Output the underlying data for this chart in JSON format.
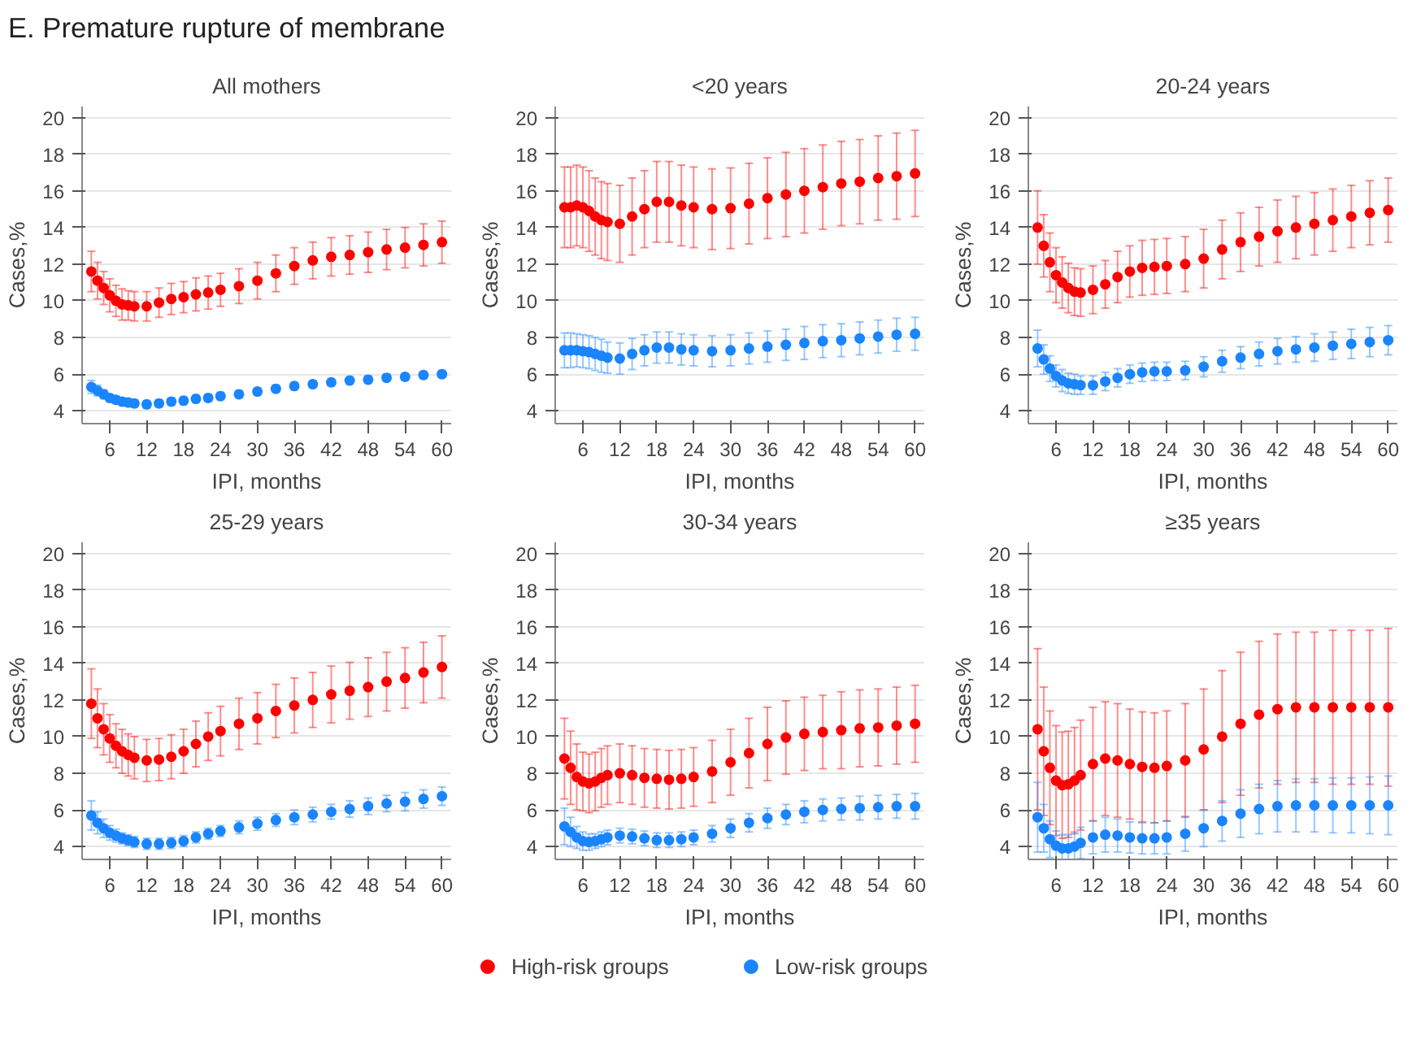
{
  "chart_data": [
    {
      "type": "scatter",
      "title": "All mothers",
      "xlabel": "IPI, months",
      "ylabel": "Cases,%",
      "annotations": [
        "E. Premature rupture of membrane"
      ],
      "legend": "bottom",
      "marker": "circle",
      "grid": "y",
      "xlim": [
        1.5,
        61.5
      ],
      "xticks": [
        6,
        12,
        18,
        24,
        30,
        36,
        42,
        48,
        54,
        60
      ],
      "ylim": [
        3.3,
        20.6
      ],
      "yticks": [
        4,
        6,
        8,
        10,
        12,
        14,
        16,
        18,
        20
      ],
      "x": [
        3,
        4,
        5,
        6,
        7,
        8,
        9,
        10,
        12,
        14,
        16,
        18,
        20,
        22,
        24,
        27,
        30,
        33,
        36,
        39,
        42,
        45,
        48,
        51,
        54,
        57,
        60
      ],
      "series": [
        {
          "name": "High-risk groups",
          "color": "#ff0000",
          "values": [
            11.6,
            11.1,
            10.7,
            10.3,
            10.0,
            9.8,
            9.75,
            9.7,
            9.7,
            9.9,
            10.1,
            10.2,
            10.35,
            10.45,
            10.6,
            10.8,
            11.1,
            11.5,
            11.9,
            12.2,
            12.4,
            12.5,
            12.65,
            12.8,
            12.9,
            13.05,
            13.2
          ],
          "errors": [
            1.1,
            1.0,
            0.9,
            0.9,
            0.85,
            0.85,
            0.8,
            0.8,
            0.8,
            0.8,
            0.85,
            0.85,
            0.9,
            0.9,
            0.9,
            0.95,
            1.0,
            1.0,
            1.0,
            1.0,
            1.05,
            1.05,
            1.1,
            1.1,
            1.1,
            1.15,
            1.15
          ]
        },
        {
          "name": "Low-risk groups",
          "color": "#1a85ff",
          "values": [
            5.3,
            5.1,
            4.9,
            4.7,
            4.6,
            4.5,
            4.45,
            4.4,
            4.35,
            4.4,
            4.5,
            4.55,
            4.65,
            4.7,
            4.8,
            4.9,
            5.05,
            5.2,
            5.35,
            5.45,
            5.55,
            5.65,
            5.7,
            5.8,
            5.85,
            5.95,
            6.0
          ],
          "errors": [
            0.35,
            0.3,
            0.25,
            0.2,
            0.2,
            0.2,
            0.2,
            0.2,
            0.2,
            0.2,
            0.2,
            0.2,
            0.2,
            0.2,
            0.2,
            0.2,
            0.2,
            0.2,
            0.2,
            0.2,
            0.2,
            0.2,
            0.2,
            0.2,
            0.2,
            0.2,
            0.2
          ]
        }
      ]
    },
    {
      "type": "scatter",
      "title": "<20 years",
      "xlabel": "IPI, months",
      "ylabel": "Cases,%",
      "marker": "circle",
      "grid": "y",
      "xlim": [
        1.5,
        61.5
      ],
      "xticks": [
        6,
        12,
        18,
        24,
        30,
        36,
        42,
        48,
        54,
        60
      ],
      "ylim": [
        3.3,
        20.6
      ],
      "yticks": [
        4,
        6,
        8,
        10,
        12,
        14,
        16,
        18,
        20
      ],
      "x": [
        3,
        4,
        5,
        6,
        7,
        8,
        9,
        10,
        12,
        14,
        16,
        18,
        20,
        22,
        24,
        27,
        30,
        33,
        36,
        39,
        42,
        45,
        48,
        51,
        54,
        57,
        60
      ],
      "series": [
        {
          "color": "#ff0000",
          "values": [
            15.1,
            15.1,
            15.2,
            15.1,
            14.9,
            14.6,
            14.4,
            14.3,
            14.2,
            14.6,
            15.0,
            15.4,
            15.4,
            15.2,
            15.1,
            15.0,
            15.05,
            15.3,
            15.6,
            15.8,
            16.0,
            16.2,
            16.4,
            16.5,
            16.7,
            16.8,
            16.95
          ],
          "errors": [
            2.2,
            2.2,
            2.2,
            2.2,
            2.2,
            2.1,
            2.1,
            2.1,
            2.1,
            2.1,
            2.1,
            2.2,
            2.2,
            2.2,
            2.2,
            2.2,
            2.2,
            2.2,
            2.2,
            2.3,
            2.3,
            2.3,
            2.3,
            2.3,
            2.3,
            2.35,
            2.35
          ]
        },
        {
          "color": "#1a85ff",
          "values": [
            7.3,
            7.3,
            7.3,
            7.25,
            7.2,
            7.1,
            7.0,
            6.9,
            6.85,
            7.1,
            7.3,
            7.45,
            7.45,
            7.35,
            7.3,
            7.25,
            7.3,
            7.4,
            7.5,
            7.6,
            7.7,
            7.8,
            7.85,
            7.95,
            8.05,
            8.15,
            8.2
          ],
          "errors": [
            0.95,
            0.95,
            0.9,
            0.9,
            0.9,
            0.9,
            0.9,
            0.85,
            0.85,
            0.85,
            0.85,
            0.85,
            0.85,
            0.85,
            0.85,
            0.85,
            0.85,
            0.85,
            0.85,
            0.85,
            0.9,
            0.9,
            0.9,
            0.9,
            0.9,
            0.9,
            0.9
          ]
        }
      ]
    },
    {
      "type": "scatter",
      "title": "20-24 years",
      "xlabel": "IPI, months",
      "ylabel": "Cases,%",
      "marker": "circle",
      "grid": "y",
      "xlim": [
        1.5,
        61.5
      ],
      "xticks": [
        6,
        12,
        18,
        24,
        30,
        36,
        42,
        48,
        54,
        60
      ],
      "ylim": [
        3.3,
        20.6
      ],
      "yticks": [
        4,
        6,
        8,
        10,
        12,
        14,
        16,
        18,
        20
      ],
      "x": [
        3,
        4,
        5,
        6,
        7,
        8,
        9,
        10,
        12,
        14,
        16,
        18,
        20,
        22,
        24,
        27,
        30,
        33,
        36,
        39,
        42,
        45,
        48,
        51,
        54,
        57,
        60
      ],
      "series": [
        {
          "color": "#ff0000",
          "values": [
            14.0,
            13.0,
            12.1,
            11.4,
            11.0,
            10.7,
            10.5,
            10.45,
            10.6,
            10.9,
            11.3,
            11.6,
            11.8,
            11.85,
            11.9,
            12.0,
            12.3,
            12.8,
            13.2,
            13.5,
            13.8,
            14.0,
            14.2,
            14.4,
            14.6,
            14.8,
            14.95
          ],
          "errors": [
            2.0,
            1.7,
            1.6,
            1.5,
            1.4,
            1.35,
            1.3,
            1.3,
            1.3,
            1.3,
            1.4,
            1.4,
            1.5,
            1.5,
            1.5,
            1.5,
            1.6,
            1.6,
            1.6,
            1.6,
            1.7,
            1.7,
            1.7,
            1.7,
            1.7,
            1.75,
            1.75
          ]
        },
        {
          "color": "#1a85ff",
          "values": [
            7.4,
            6.8,
            6.3,
            5.9,
            5.65,
            5.5,
            5.45,
            5.4,
            5.4,
            5.6,
            5.8,
            6.0,
            6.1,
            6.15,
            6.15,
            6.2,
            6.4,
            6.7,
            6.9,
            7.1,
            7.25,
            7.35,
            7.45,
            7.55,
            7.65,
            7.75,
            7.85
          ],
          "errors": [
            1.0,
            0.8,
            0.7,
            0.6,
            0.6,
            0.55,
            0.55,
            0.5,
            0.5,
            0.5,
            0.5,
            0.5,
            0.5,
            0.5,
            0.5,
            0.5,
            0.55,
            0.6,
            0.6,
            0.65,
            0.7,
            0.7,
            0.75,
            0.75,
            0.8,
            0.8,
            0.8
          ]
        }
      ]
    },
    {
      "type": "scatter",
      "title": "25-29 years",
      "xlabel": "IPI, months",
      "ylabel": "Cases,%",
      "marker": "circle",
      "grid": "y",
      "xlim": [
        1.5,
        61.5
      ],
      "xticks": [
        6,
        12,
        18,
        24,
        30,
        36,
        42,
        48,
        54,
        60
      ],
      "ylim": [
        3.3,
        20.6
      ],
      "yticks": [
        4,
        6,
        8,
        10,
        12,
        14,
        16,
        18,
        20
      ],
      "x": [
        3,
        4,
        5,
        6,
        7,
        8,
        9,
        10,
        12,
        14,
        16,
        18,
        20,
        22,
        24,
        27,
        30,
        33,
        36,
        39,
        42,
        45,
        48,
        51,
        54,
        57,
        60
      ],
      "series": [
        {
          "color": "#ff0000",
          "values": [
            11.8,
            11.0,
            10.4,
            9.9,
            9.5,
            9.2,
            9.0,
            8.85,
            8.7,
            8.75,
            8.9,
            9.2,
            9.6,
            10.0,
            10.3,
            10.7,
            11.0,
            11.4,
            11.7,
            12.0,
            12.3,
            12.5,
            12.7,
            13.0,
            13.2,
            13.5,
            13.8
          ],
          "errors": [
            1.9,
            1.6,
            1.4,
            1.3,
            1.2,
            1.2,
            1.15,
            1.15,
            1.15,
            1.15,
            1.2,
            1.2,
            1.25,
            1.3,
            1.35,
            1.4,
            1.4,
            1.45,
            1.5,
            1.5,
            1.55,
            1.55,
            1.6,
            1.6,
            1.65,
            1.65,
            1.7
          ]
        },
        {
          "color": "#1a85ff",
          "values": [
            5.7,
            5.3,
            5.0,
            4.75,
            4.6,
            4.45,
            4.35,
            4.25,
            4.15,
            4.15,
            4.2,
            4.3,
            4.5,
            4.7,
            4.85,
            5.05,
            5.25,
            5.45,
            5.6,
            5.75,
            5.9,
            6.05,
            6.2,
            6.35,
            6.45,
            6.6,
            6.75
          ],
          "errors": [
            0.8,
            0.6,
            0.5,
            0.4,
            0.35,
            0.3,
            0.3,
            0.3,
            0.3,
            0.3,
            0.3,
            0.3,
            0.3,
            0.3,
            0.3,
            0.35,
            0.35,
            0.35,
            0.4,
            0.4,
            0.4,
            0.45,
            0.45,
            0.45,
            0.5,
            0.5,
            0.5
          ]
        }
      ]
    },
    {
      "type": "scatter",
      "title": "30-34 years",
      "xlabel": "IPI, months",
      "ylabel": "Cases,%",
      "marker": "circle",
      "grid": "y",
      "xlim": [
        1.5,
        61.5
      ],
      "xticks": [
        6,
        12,
        18,
        24,
        30,
        36,
        42,
        48,
        54,
        60
      ],
      "ylim": [
        3.3,
        20.6
      ],
      "yticks": [
        4,
        6,
        8,
        10,
        12,
        14,
        16,
        18,
        20
      ],
      "x": [
        3,
        4,
        5,
        6,
        7,
        8,
        9,
        10,
        12,
        14,
        16,
        18,
        20,
        22,
        24,
        27,
        30,
        33,
        36,
        39,
        42,
        45,
        48,
        51,
        54,
        57,
        60
      ],
      "series": [
        {
          "color": "#ff0000",
          "values": [
            8.8,
            8.3,
            7.8,
            7.55,
            7.45,
            7.55,
            7.75,
            7.9,
            8.0,
            7.9,
            7.75,
            7.7,
            7.65,
            7.7,
            7.8,
            8.1,
            8.6,
            9.1,
            9.6,
            9.95,
            10.15,
            10.25,
            10.35,
            10.45,
            10.5,
            10.6,
            10.7
          ],
          "errors": [
            2.2,
            2.0,
            1.8,
            1.6,
            1.6,
            1.6,
            1.6,
            1.6,
            1.6,
            1.6,
            1.6,
            1.6,
            1.6,
            1.6,
            1.6,
            1.7,
            1.8,
            1.9,
            2.0,
            2.0,
            2.0,
            2.0,
            2.1,
            2.1,
            2.1,
            2.1,
            2.1
          ]
        },
        {
          "color": "#1a85ff",
          "values": [
            5.1,
            4.8,
            4.5,
            4.3,
            4.25,
            4.3,
            4.4,
            4.5,
            4.6,
            4.55,
            4.45,
            4.35,
            4.35,
            4.4,
            4.5,
            4.7,
            5.0,
            5.3,
            5.55,
            5.75,
            5.9,
            6.0,
            6.05,
            6.1,
            6.15,
            6.2,
            6.2
          ],
          "errors": [
            1.0,
            0.8,
            0.6,
            0.5,
            0.45,
            0.4,
            0.4,
            0.4,
            0.4,
            0.4,
            0.4,
            0.4,
            0.4,
            0.4,
            0.4,
            0.45,
            0.5,
            0.5,
            0.55,
            0.55,
            0.6,
            0.6,
            0.6,
            0.65,
            0.65,
            0.65,
            0.7
          ]
        }
      ]
    },
    {
      "type": "scatter",
      "title": "≥35 years",
      "xlabel": "IPI, months",
      "ylabel": "Cases,%",
      "marker": "circle",
      "grid": "y",
      "xlim": [
        1.5,
        61.5
      ],
      "xticks": [
        6,
        12,
        18,
        24,
        30,
        36,
        42,
        48,
        54,
        60
      ],
      "ylim": [
        3.3,
        20.6
      ],
      "yticks": [
        4,
        6,
        8,
        10,
        12,
        14,
        16,
        18,
        20
      ],
      "x": [
        3,
        4,
        5,
        6,
        7,
        8,
        9,
        10,
        12,
        14,
        16,
        18,
        20,
        22,
        24,
        27,
        30,
        33,
        36,
        39,
        42,
        45,
        48,
        51,
        54,
        57,
        60
      ],
      "series": [
        {
          "color": "#ff0000",
          "values": [
            10.4,
            9.2,
            8.3,
            7.6,
            7.35,
            7.4,
            7.6,
            7.9,
            8.5,
            8.8,
            8.7,
            8.5,
            8.35,
            8.3,
            8.4,
            8.7,
            9.3,
            10.0,
            10.7,
            11.2,
            11.5,
            11.6,
            11.6,
            11.6,
            11.6,
            11.6,
            11.6
          ],
          "errors": [
            4.4,
            3.5,
            3.1,
            3.0,
            2.9,
            2.9,
            2.9,
            3.0,
            3.1,
            3.1,
            3.1,
            3.0,
            3.0,
            3.0,
            3.0,
            3.1,
            3.3,
            3.6,
            3.9,
            4.0,
            4.1,
            4.1,
            4.1,
            4.2,
            4.2,
            4.2,
            4.3
          ]
        },
        {
          "color": "#1a85ff",
          "values": [
            5.6,
            5.0,
            4.4,
            4.05,
            3.9,
            3.9,
            4.0,
            4.2,
            4.5,
            4.65,
            4.6,
            4.5,
            4.45,
            4.45,
            4.5,
            4.7,
            5.0,
            5.4,
            5.8,
            6.05,
            6.2,
            6.25,
            6.25,
            6.25,
            6.25,
            6.25,
            6.25
          ],
          "errors": [
            1.9,
            1.3,
            1.0,
            0.8,
            0.75,
            0.75,
            0.8,
            0.85,
            0.9,
            0.95,
            0.9,
            0.85,
            0.85,
            0.85,
            0.9,
            0.95,
            1.0,
            1.1,
            1.3,
            1.35,
            1.4,
            1.45,
            1.45,
            1.5,
            1.5,
            1.55,
            1.6
          ]
        }
      ]
    }
  ]
}
